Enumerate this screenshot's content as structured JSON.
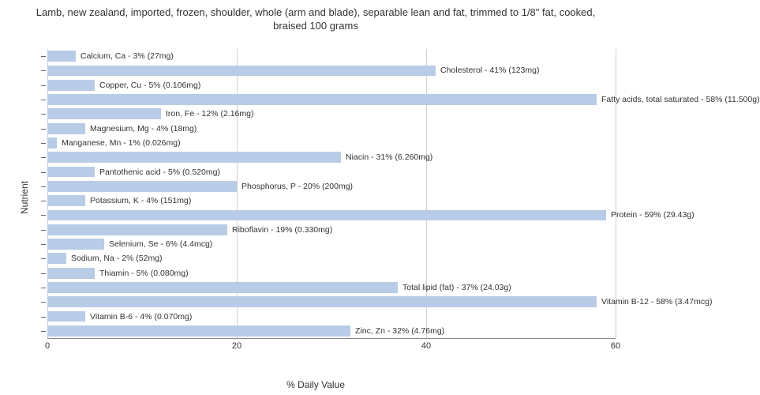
{
  "chart": {
    "type": "bar-horizontal",
    "title": "Lamb, new zealand, imported, frozen, shoulder, whole (arm and blade), separable lean and fat, trimmed to 1/8\" fat, cooked, braised\n100 grams",
    "x_label": "% Daily Value",
    "y_label": "Nutrient",
    "xlim": [
      0,
      60
    ],
    "xtick_step": 20,
    "xticks": [
      0,
      20,
      40,
      60
    ],
    "bar_color": "#b8cce8",
    "grid_color": "#d0d0d0",
    "background_color": "#ffffff",
    "text_color": "#333333",
    "title_fontsize": 13,
    "label_fontsize": 12,
    "tick_fontsize": 11,
    "datalabel_fontsize": 10.5,
    "bars": [
      {
        "label": "Calcium, Ca - 3% (27mg)",
        "value": 3
      },
      {
        "label": "Cholesterol - 41% (123mg)",
        "value": 41
      },
      {
        "label": "Copper, Cu - 5% (0.106mg)",
        "value": 5
      },
      {
        "label": "Fatty acids, total saturated - 58% (11.500g)",
        "value": 58
      },
      {
        "label": "Iron, Fe - 12% (2.16mg)",
        "value": 12
      },
      {
        "label": "Magnesium, Mg - 4% (18mg)",
        "value": 4
      },
      {
        "label": "Manganese, Mn - 1% (0.026mg)",
        "value": 1
      },
      {
        "label": "Niacin - 31% (6.260mg)",
        "value": 31
      },
      {
        "label": "Pantothenic acid - 5% (0.520mg)",
        "value": 5
      },
      {
        "label": "Phosphorus, P - 20% (200mg)",
        "value": 20
      },
      {
        "label": "Potassium, K - 4% (151mg)",
        "value": 4
      },
      {
        "label": "Protein - 59% (29.43g)",
        "value": 59
      },
      {
        "label": "Riboflavin - 19% (0.330mg)",
        "value": 19
      },
      {
        "label": "Selenium, Se - 6% (4.4mcg)",
        "value": 6
      },
      {
        "label": "Sodium, Na - 2% (52mg)",
        "value": 2
      },
      {
        "label": "Thiamin - 5% (0.080mg)",
        "value": 5
      },
      {
        "label": "Total lipid (fat) - 37% (24.03g)",
        "value": 37
      },
      {
        "label": "Vitamin B-12 - 58% (3.47mcg)",
        "value": 58
      },
      {
        "label": "Vitamin B-6 - 4% (0.070mg)",
        "value": 4
      },
      {
        "label": "Zinc, Zn - 32% (4.76mg)",
        "value": 32
      }
    ]
  }
}
